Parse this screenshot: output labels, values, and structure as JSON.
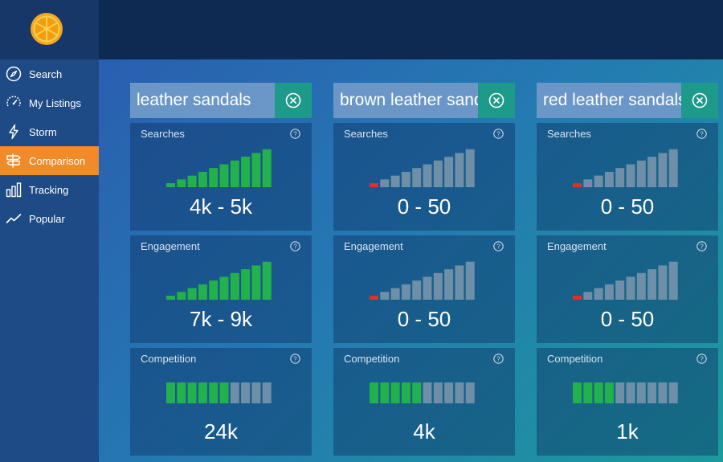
{
  "nav": {
    "items": [
      {
        "label": "Search",
        "icon": "compass-icon"
      },
      {
        "label": "My Listings",
        "icon": "gauge-icon"
      },
      {
        "label": "Storm",
        "icon": "lightning-icon"
      },
      {
        "label": "Comparison",
        "icon": "signpost-icon",
        "active": true
      },
      {
        "label": "Tracking",
        "icon": "bar-chart-icon"
      },
      {
        "label": "Popular",
        "icon": "trend-line-icon"
      }
    ]
  },
  "colors": {
    "active_nav": "#f08a2b",
    "bar_on": "#22b14c",
    "bar_off": "#6d8fa8",
    "bar_low": "#e0302a",
    "clear_button": "#1e9a8a"
  },
  "columns": [
    {
      "query": "leather sandals",
      "metrics": [
        {
          "title": "Searches",
          "value": "4k - 5k",
          "level": 10
        },
        {
          "title": "Engagement",
          "value": "7k - 9k",
          "level": 10
        },
        {
          "title": "Competition",
          "value": "24k",
          "level": 6
        }
      ]
    },
    {
      "query": "brown leather sandals",
      "metrics": [
        {
          "title": "Searches",
          "value": "0 - 50",
          "level": 1
        },
        {
          "title": "Engagement",
          "value": "0 - 50",
          "level": 1
        },
        {
          "title": "Competition",
          "value": "4k",
          "level": 5
        }
      ]
    },
    {
      "query": "red leather sandals",
      "metrics": [
        {
          "title": "Searches",
          "value": "0 - 50",
          "level": 1
        },
        {
          "title": "Engagement",
          "value": "0 - 50",
          "level": 1
        },
        {
          "title": "Competition",
          "value": "1k",
          "level": 4
        }
      ]
    }
  ],
  "bar_count": 10
}
